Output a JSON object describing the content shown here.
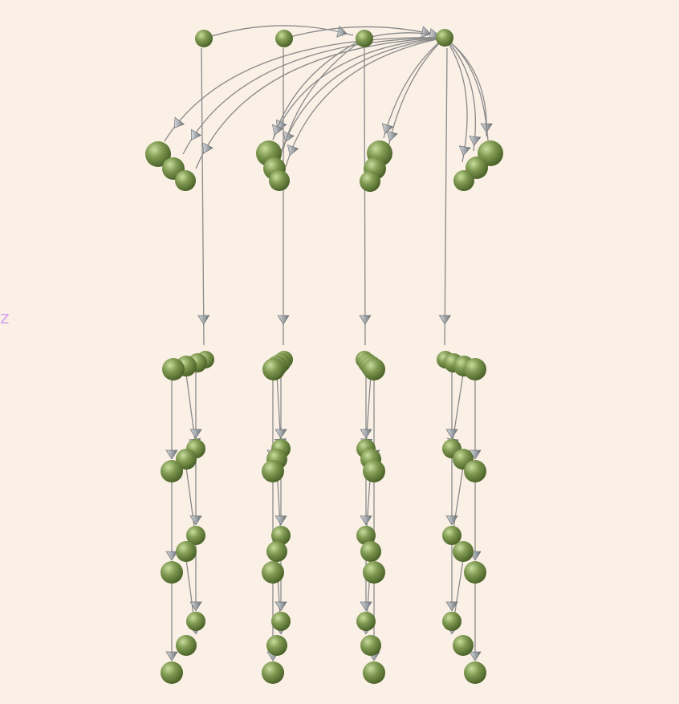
{
  "view": {
    "axis_label": "z",
    "colors": {
      "background": "#faf0e6",
      "node": "#7f9a52",
      "node_highlight": "#c9dc9c",
      "node_shadow": "#4b6128",
      "edge": "#8a8a8a",
      "arrow": "#a9aeb3",
      "axis_label": "#d9a6f2"
    },
    "node_icon": "sphere-node",
    "edge_icon": "cone-arrow"
  }
}
